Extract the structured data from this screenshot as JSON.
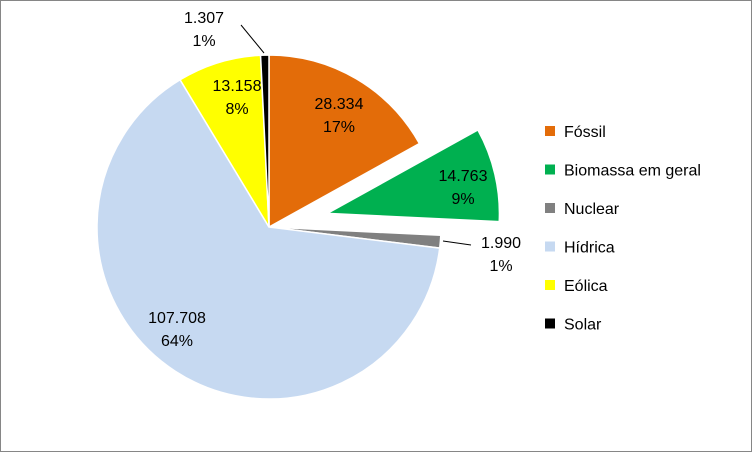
{
  "chart_data": {
    "type": "pie",
    "title": "",
    "exploded": [
      "Biomassa em geral"
    ],
    "legend_position": "right",
    "slices": [
      {
        "label": "Fóssil",
        "value": 28334,
        "value_label": "28.334",
        "percent_label": "17%",
        "color": "#E36C09"
      },
      {
        "label": "Biomassa em geral",
        "value": 14763,
        "value_label": "14.763",
        "percent_label": "9%",
        "color": "#00B050"
      },
      {
        "label": "Nuclear",
        "value": 1990,
        "value_label": "1.990",
        "percent_label": "1%",
        "color": "#808080"
      },
      {
        "label": "Hídrica",
        "value": 107708,
        "value_label": "107.708",
        "percent_label": "64%",
        "color": "#C6D9F1"
      },
      {
        "label": "Eólica",
        "value": 13158,
        "value_label": "13.158",
        "percent_label": "8%",
        "color": "#FFFF00"
      },
      {
        "label": "Solar",
        "value": 1307,
        "value_label": "1.307",
        "percent_label": "1%",
        "color": "#000000"
      }
    ]
  }
}
